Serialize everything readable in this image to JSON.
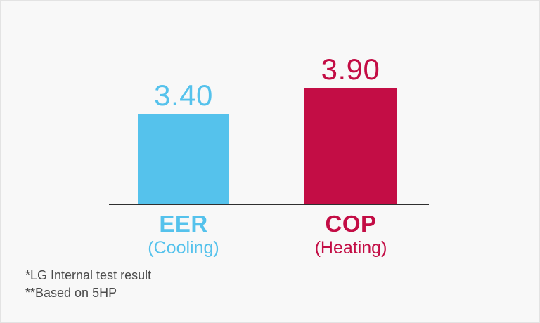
{
  "page": {
    "background_color": "#f8f8f8",
    "border_color": "#e3e3e3",
    "baseline_color": "#2f2f2f"
  },
  "chart_data": {
    "type": "bar",
    "categories": [
      "EER",
      "COP"
    ],
    "category_sublabels": [
      "(Cooling)",
      "(Heating)"
    ],
    "values": [
      3.4,
      3.9
    ],
    "value_labels": [
      "3.40",
      "3.90"
    ],
    "series_colors": [
      "#55C2EC",
      "#C30D45"
    ],
    "title": "",
    "xlabel": "",
    "ylabel": "",
    "grid": false,
    "legend": false,
    "annotations": [
      "*LG Internal test result",
      "**Based on 5HP"
    ]
  },
  "bars": [
    {
      "value_label": "3.40",
      "label": "EER",
      "sublabel": "(Cooling)",
      "color": "#55C2EC"
    },
    {
      "value_label": "3.90",
      "label": "COP",
      "sublabel": "(Heating)",
      "color": "#C30D45"
    }
  ],
  "footnotes": {
    "line1": "*LG Internal test result",
    "line2": "**Based on 5HP"
  }
}
